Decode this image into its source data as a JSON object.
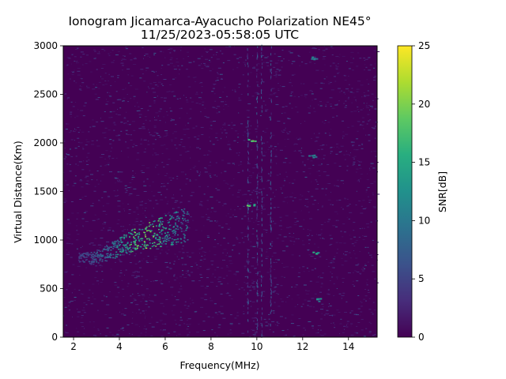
{
  "chart_data": {
    "type": "heatmap",
    "title_line1": "Ionogram Jicamarca-Ayacucho Polarization NE45°",
    "title_line2": "11/25/2023-05:58:05 UTC",
    "xlabel": "Frequency(MHz)",
    "ylabel": "Virtual Distance(Km)",
    "xlim": [
      1.55,
      15.25
    ],
    "ylim": [
      0,
      3000
    ],
    "x_ticks": [
      2,
      4,
      6,
      8,
      10,
      12,
      14
    ],
    "y_ticks": [
      0,
      500,
      1000,
      1500,
      2000,
      2500,
      3000
    ],
    "colorbar": {
      "label": "SNR[dB]",
      "range": [
        0,
        25
      ],
      "ticks": [
        0,
        5,
        10,
        15,
        20,
        25
      ],
      "colormap": "viridis"
    },
    "grid": false,
    "features": {
      "f_layer_trace": {
        "description_points_freq_mhz": [
          2.2,
          2.8,
          3.4,
          4.0,
          4.6,
          5.2,
          5.8,
          6.4,
          7.0
        ],
        "virtual_distance_km": [
          820,
          810,
          860,
          930,
          1000,
          1040,
          1080,
          1120,
          1150
        ],
        "peak_snr_db": [
          6,
          8,
          10,
          14,
          20,
          22,
          18,
          14,
          11
        ]
      },
      "vertical_interference_freq_mhz": [
        9.6,
        10.0,
        10.2,
        10.6
      ],
      "isolated_hotspots": [
        {
          "freq_mhz": 9.75,
          "distance_km": 2020,
          "snr_db": 22
        },
        {
          "freq_mhz": 9.7,
          "distance_km": 1350,
          "snr_db": 20
        },
        {
          "freq_mhz": 12.5,
          "distance_km": 860,
          "snr_db": 17
        },
        {
          "freq_mhz": 12.5,
          "distance_km": 2870,
          "snr_db": 12
        },
        {
          "freq_mhz": 12.7,
          "distance_km": 380,
          "snr_db": 13
        },
        {
          "freq_mhz": 12.4,
          "distance_km": 1860,
          "snr_db": 12
        }
      ]
    }
  },
  "colors": {
    "background_low": "#440154",
    "mid": "#21918c",
    "high": "#fde725"
  }
}
